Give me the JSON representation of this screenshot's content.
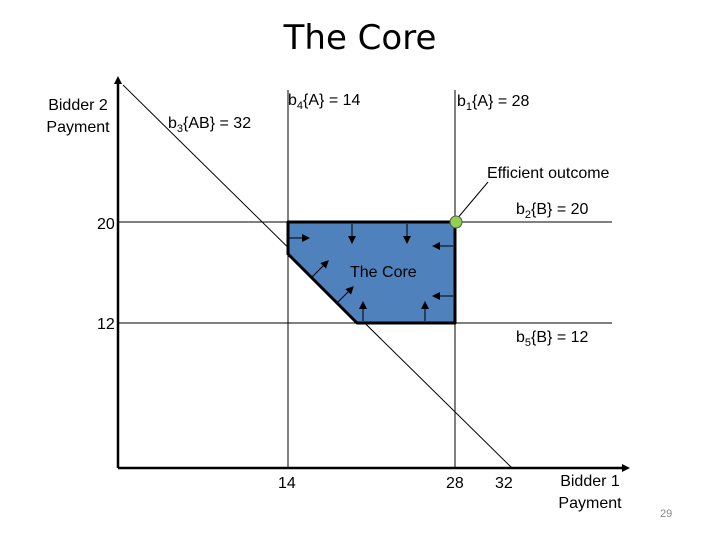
{
  "slide": {
    "title": "The Core",
    "page_number": "29"
  },
  "axes": {
    "y_label_line1": "Bidder 2",
    "y_label_line2": "Payment",
    "x_label_line1": "Bidder 1",
    "x_label_line2": "Payment",
    "x_ticks": [
      "14",
      "28",
      "32"
    ],
    "y_ticks": [
      "20",
      "12"
    ]
  },
  "bids": {
    "b4": {
      "prefix": "b",
      "sub": "4",
      "text": "{A} = 14"
    },
    "b1": {
      "prefix": "b",
      "sub": "1",
      "text": "{A} = 28"
    },
    "b3": {
      "prefix": "b",
      "sub": "3",
      "text": "{AB} = 32"
    },
    "b2": {
      "prefix": "b",
      "sub": "2",
      "text": "{B} = 20"
    },
    "b5": {
      "prefix": "b",
      "sub": "5",
      "text": "{B} = 12"
    }
  },
  "annotations": {
    "efficient_outcome": "Efficient outcome",
    "core_region_label": "The Core"
  },
  "colors": {
    "core_fill": "#4f81bd",
    "efficient_point": "#92d050",
    "lines": "#000000"
  }
}
